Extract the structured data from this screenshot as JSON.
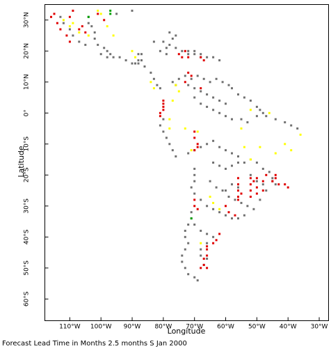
{
  "chart_data": {
    "type": "scatter",
    "xlabel": "Longitude",
    "ylabel": "Latitude",
    "caption": "Forecast Lead Time in Months 2.5 months S Jan 2000",
    "xlim": [
      -118,
      -27
    ],
    "ylim": [
      -67,
      35
    ],
    "x_ticks": [
      {
        "value": -110,
        "label": "110°W"
      },
      {
        "value": -100,
        "label": "100°W"
      },
      {
        "value": -90,
        "label": "90°W"
      },
      {
        "value": -80,
        "label": "80°W"
      },
      {
        "value": -70,
        "label": "70°W"
      },
      {
        "value": -60,
        "label": "60°W"
      },
      {
        "value": -50,
        "label": "50°W"
      },
      {
        "value": -40,
        "label": "40°W"
      },
      {
        "value": -30,
        "label": "30°W"
      }
    ],
    "y_ticks": [
      {
        "value": 30,
        "label": "30°N"
      },
      {
        "value": 20,
        "label": "20°N"
      },
      {
        "value": 10,
        "label": "10°N"
      },
      {
        "value": 0,
        "label": "0°"
      },
      {
        "value": -10,
        "label": "10°S"
      },
      {
        "value": -20,
        "label": "20°S"
      },
      {
        "value": -30,
        "label": "30°S"
      },
      {
        "value": -40,
        "label": "40°S"
      },
      {
        "value": -50,
        "label": "50°S"
      },
      {
        "value": -60,
        "label": "60°S"
      }
    ],
    "colors": {
      "gray": "#707070",
      "red": "#e00000",
      "yellow": "#ffff00",
      "green": "#00a000"
    },
    "series": [
      {
        "color": "gray",
        "points": [
          [
            -104,
            31
          ],
          [
            -104,
            29
          ],
          [
            -103,
            28
          ],
          [
            -102,
            26
          ],
          [
            -102,
            24
          ],
          [
            -101,
            22
          ],
          [
            -99,
            21
          ],
          [
            -98,
            20
          ],
          [
            -97,
            19
          ],
          [
            -96,
            18
          ],
          [
            -94,
            18
          ],
          [
            -92,
            17
          ],
          [
            -90,
            16
          ],
          [
            -88,
            16
          ],
          [
            -86,
            15
          ],
          [
            -84,
            13
          ],
          [
            -83,
            11
          ],
          [
            -82,
            9
          ],
          [
            -81,
            8
          ],
          [
            -100,
            19
          ],
          [
            -98,
            18
          ],
          [
            -89,
            16
          ],
          [
            -87,
            17
          ],
          [
            -87,
            19
          ],
          [
            -88,
            19
          ],
          [
            -88,
            17
          ],
          [
            -113,
            31
          ],
          [
            -112,
            29
          ],
          [
            -110,
            27
          ],
          [
            -109,
            25
          ],
          [
            -107,
            23
          ],
          [
            -105,
            22
          ],
          [
            -95,
            32
          ],
          [
            -90,
            33
          ],
          [
            -78,
            26
          ],
          [
            -76,
            25
          ],
          [
            -77,
            24
          ],
          [
            -83,
            23
          ],
          [
            -80,
            23
          ],
          [
            -78,
            22
          ],
          [
            -76,
            21
          ],
          [
            -74,
            20
          ],
          [
            -72,
            19
          ],
          [
            -70,
            19
          ],
          [
            -68,
            18
          ],
          [
            -66,
            18
          ],
          [
            -64,
            18
          ],
          [
            -62,
            17
          ],
          [
            -79,
            21
          ],
          [
            -79,
            19
          ],
          [
            -81,
            20
          ],
          [
            -72,
            20
          ],
          [
            -70,
            20
          ],
          [
            -68,
            19
          ],
          [
            -77,
            10
          ],
          [
            -76,
            9
          ],
          [
            -75,
            11
          ],
          [
            -73,
            12
          ],
          [
            -71,
            11
          ],
          [
            -69,
            12
          ],
          [
            -67,
            11
          ],
          [
            -65,
            10
          ],
          [
            -63,
            11
          ],
          [
            -61,
            10
          ],
          [
            -59,
            9
          ],
          [
            -58,
            8
          ],
          [
            -56,
            6
          ],
          [
            -54,
            5
          ],
          [
            -52,
            4
          ],
          [
            -50,
            2
          ],
          [
            -49,
            1
          ],
          [
            -48,
            0
          ],
          [
            -72,
            9
          ],
          [
            -70,
            8
          ],
          [
            -68,
            7
          ],
          [
            -66,
            6
          ],
          [
            -64,
            5
          ],
          [
            -62,
            4
          ],
          [
            -60,
            3
          ],
          [
            -70,
            5
          ],
          [
            -68,
            3
          ],
          [
            -66,
            2
          ],
          [
            -64,
            1
          ],
          [
            -62,
            0
          ],
          [
            -60,
            -1
          ],
          [
            -58,
            -2
          ],
          [
            -55,
            -2
          ],
          [
            -53,
            -3
          ],
          [
            -50,
            -1
          ],
          [
            -47,
            -1
          ],
          [
            -44,
            -2
          ],
          [
            -41,
            -3
          ],
          [
            -39,
            -4
          ],
          [
            -37,
            -5
          ],
          [
            -80,
            -2
          ],
          [
            -81,
            -4
          ],
          [
            -80,
            -6
          ],
          [
            -79,
            -8
          ],
          [
            -78,
            -10
          ],
          [
            -77,
            -12
          ],
          [
            -76,
            -14
          ],
          [
            -72,
            -13
          ],
          [
            -70,
            -12
          ],
          [
            -68,
            -11
          ],
          [
            -66,
            -10
          ],
          [
            -64,
            -9
          ],
          [
            -62,
            -11
          ],
          [
            -60,
            -12
          ],
          [
            -58,
            -13
          ],
          [
            -56,
            -14
          ],
          [
            -64,
            -16
          ],
          [
            -62,
            -17
          ],
          [
            -60,
            -18
          ],
          [
            -58,
            -17
          ],
          [
            -56,
            -16
          ],
          [
            -54,
            -16
          ],
          [
            -52,
            -15
          ],
          [
            -50,
            -16
          ],
          [
            -48,
            -18
          ],
          [
            -46,
            -19
          ],
          [
            -45,
            -21
          ],
          [
            -44,
            -23
          ],
          [
            -70,
            -18
          ],
          [
            -70,
            -20
          ],
          [
            -70,
            -22
          ],
          [
            -71,
            -24
          ],
          [
            -70,
            -26
          ],
          [
            -68,
            -28
          ],
          [
            -66,
            -30
          ],
          [
            -64,
            -31
          ],
          [
            -62,
            -32
          ],
          [
            -60,
            -33
          ],
          [
            -58,
            -34
          ],
          [
            -56,
            -34
          ],
          [
            -54,
            -33
          ],
          [
            -65,
            -22
          ],
          [
            -63,
            -24
          ],
          [
            -61,
            -25
          ],
          [
            -59,
            -27
          ],
          [
            -57,
            -28
          ],
          [
            -55,
            -29
          ],
          [
            -53,
            -30
          ],
          [
            -51,
            -31
          ],
          [
            -49,
            -28
          ],
          [
            -47,
            -25
          ],
          [
            -45,
            -22
          ],
          [
            -71,
            -32
          ],
          [
            -71,
            -34
          ],
          [
            -72,
            -36
          ],
          [
            -73,
            -38
          ],
          [
            -73,
            -40
          ],
          [
            -72,
            -42
          ],
          [
            -73,
            -44
          ],
          [
            -74,
            -46
          ],
          [
            -74,
            -48
          ],
          [
            -73,
            -50
          ],
          [
            -72,
            -52
          ],
          [
            -70,
            -53
          ],
          [
            -69,
            -54
          ],
          [
            -70,
            -36
          ],
          [
            -68,
            -38
          ],
          [
            -66,
            -39
          ],
          [
            -64,
            -40
          ],
          [
            -66,
            -42
          ],
          [
            -68,
            -44
          ],
          [
            -68,
            -46
          ],
          [
            -66,
            -47
          ],
          [
            -67,
            -49
          ],
          [
            -60,
            -25
          ],
          [
            -58,
            -23
          ],
          [
            -56,
            -24
          ],
          [
            -52,
            -20
          ],
          [
            -50,
            -22
          ],
          [
            -48,
            -23
          ]
        ]
      },
      {
        "color": "red",
        "points": [
          [
            -116,
            31
          ],
          [
            -115,
            32
          ],
          [
            -114,
            29
          ],
          [
            -113,
            27
          ],
          [
            -111,
            25
          ],
          [
            -110,
            23
          ],
          [
            -110,
            31
          ],
          [
            -109,
            33
          ],
          [
            -107,
            27
          ],
          [
            -106,
            28
          ],
          [
            -105,
            26
          ],
          [
            -101,
            32
          ],
          [
            -99,
            30
          ],
          [
            -75,
            19
          ],
          [
            -74,
            18
          ],
          [
            -73,
            20
          ],
          [
            -72,
            18
          ],
          [
            -68,
            18
          ],
          [
            -67,
            17
          ],
          [
            -80,
            4
          ],
          [
            -80,
            3
          ],
          [
            -80,
            2
          ],
          [
            -80,
            1
          ],
          [
            -81,
            0
          ],
          [
            -81,
            -1
          ],
          [
            -72,
            13
          ],
          [
            -71,
            12
          ],
          [
            -73,
            10
          ],
          [
            -68,
            8
          ],
          [
            -70,
            -6
          ],
          [
            -70,
            -8
          ],
          [
            -69,
            -10
          ],
          [
            -69,
            -11
          ],
          [
            -70,
            -12
          ],
          [
            -44,
            -20
          ],
          [
            -44,
            -21
          ],
          [
            -45,
            -22
          ],
          [
            -43,
            -23
          ],
          [
            -41,
            -23
          ],
          [
            -40,
            -24
          ],
          [
            -52,
            -21
          ],
          [
            -52,
            -23
          ],
          [
            -52,
            -25
          ],
          [
            -52,
            -27
          ],
          [
            -51,
            -22
          ],
          [
            -50,
            -24
          ],
          [
            -50,
            -26
          ],
          [
            -56,
            -21
          ],
          [
            -56,
            -23
          ],
          [
            -56,
            -25
          ],
          [
            -56,
            -27
          ],
          [
            -56,
            -28
          ],
          [
            -55,
            -26
          ],
          [
            -47,
            -20
          ],
          [
            -48,
            -22
          ],
          [
            -50,
            -21
          ],
          [
            -48,
            -25
          ],
          [
            -62,
            -39
          ],
          [
            -63,
            -41
          ],
          [
            -64,
            -42
          ],
          [
            -66,
            -43
          ],
          [
            -66,
            -44
          ],
          [
            -66,
            -46
          ],
          [
            -67,
            -47
          ],
          [
            -67,
            -49
          ],
          [
            -68,
            -50
          ],
          [
            -66,
            -50
          ],
          [
            -70,
            -28
          ],
          [
            -70,
            -30
          ],
          [
            -69,
            -31
          ],
          [
            -60,
            -30
          ],
          [
            -59,
            -32
          ],
          [
            -57,
            -33
          ]
        ]
      },
      {
        "color": "yellow",
        "points": [
          [
            -112,
            30
          ],
          [
            -110,
            28
          ],
          [
            -109,
            29
          ],
          [
            -107,
            26
          ],
          [
            -104,
            25
          ],
          [
            -101,
            33
          ],
          [
            -100,
            32
          ],
          [
            -98,
            28
          ],
          [
            -96,
            25
          ],
          [
            -90,
            20
          ],
          [
            -89,
            18
          ],
          [
            -84,
            10
          ],
          [
            -83,
            8
          ],
          [
            -76,
            9
          ],
          [
            -75,
            7
          ],
          [
            -77,
            4
          ],
          [
            -78,
            -2
          ],
          [
            -78,
            -5
          ],
          [
            -73,
            -5
          ],
          [
            -69,
            -6
          ],
          [
            -71,
            -12
          ],
          [
            -55,
            -5
          ],
          [
            -52,
            1
          ],
          [
            -46,
            0
          ],
          [
            -41,
            -10
          ],
          [
            -39,
            -12
          ],
          [
            -36,
            -7
          ],
          [
            -44,
            -13
          ],
          [
            -52,
            -15
          ],
          [
            -54,
            -11
          ],
          [
            -49,
            -11
          ],
          [
            -65,
            -27
          ],
          [
            -62,
            -31
          ],
          [
            -64,
            -29
          ],
          [
            -68,
            -42
          ]
        ]
      },
      {
        "color": "green",
        "points": [
          [
            -104,
            31
          ],
          [
            -97,
            33
          ],
          [
            -97,
            32
          ],
          [
            -71,
            -34
          ]
        ]
      }
    ]
  }
}
